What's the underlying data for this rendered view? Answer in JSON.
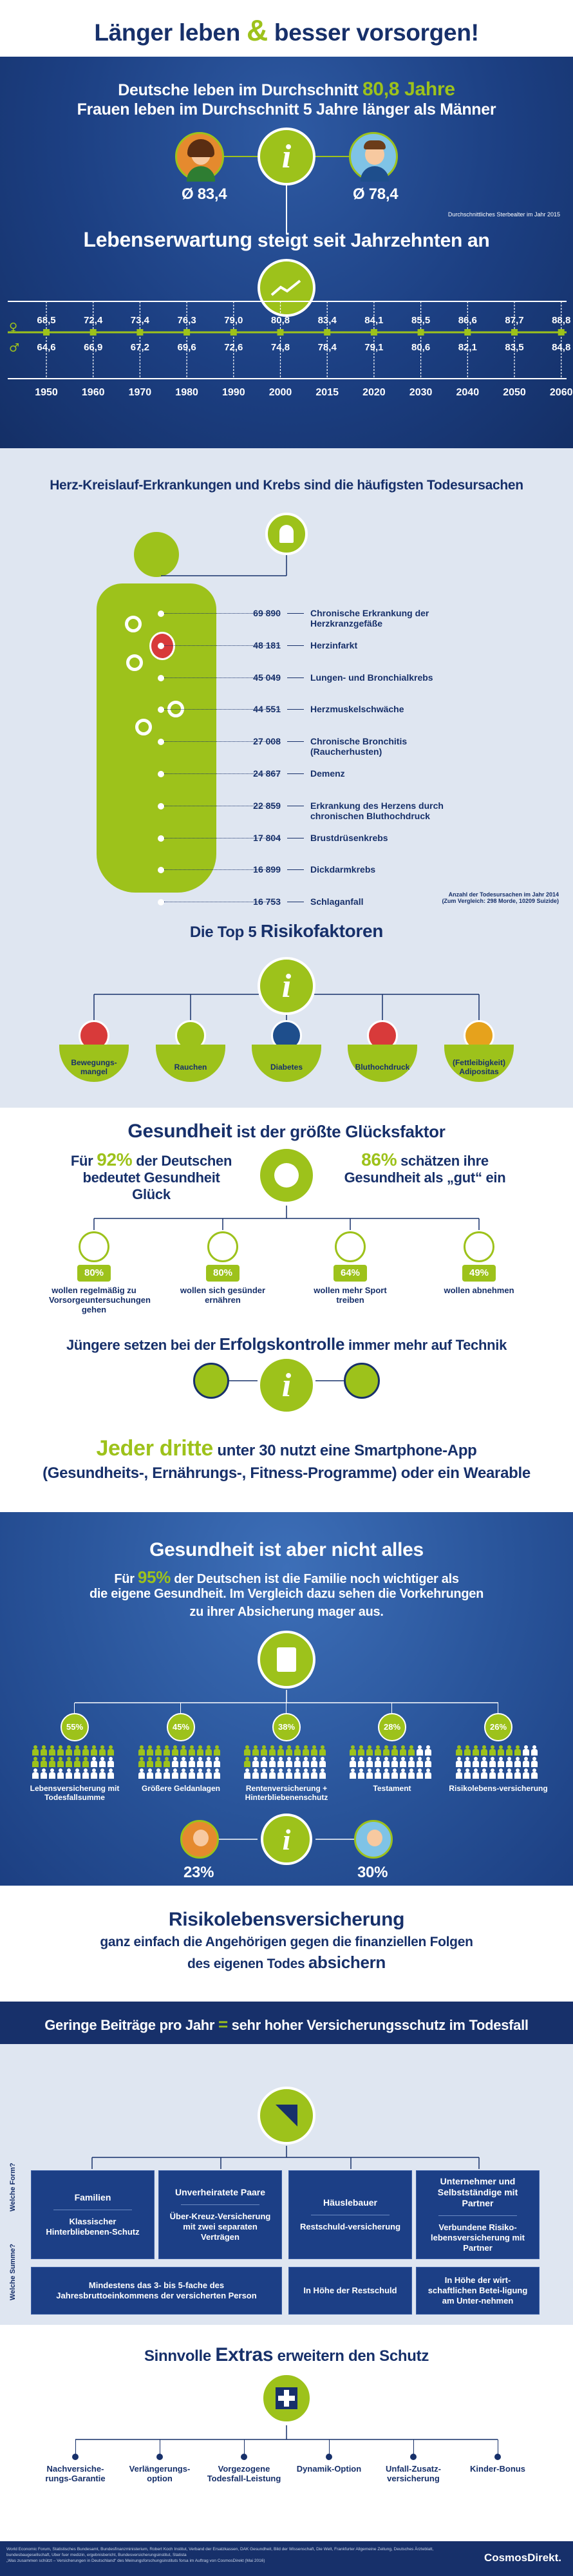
{
  "title": {
    "part1": "Länger leben",
    "amp": "&",
    "part2": "besser vorsorgen!"
  },
  "life": {
    "line1_pre": "Deutsche leben im Durchschnitt ",
    "line1_val": "80,8 Jahre",
    "line2": "Frauen leben im Durchschnitt 5 Jahre länger als Männer",
    "female": "Ø 83,4",
    "male": "Ø 78,4",
    "note": "Durchschnittliches Sterbealter im Jahr 2015"
  },
  "trend": {
    "title_pre": "Lebenserwartung",
    "title_post": " steigt seit Jahrzehnten an",
    "female_sym": "♀",
    "male_sym": "♂",
    "years": [
      "1950",
      "1960",
      "1970",
      "1980",
      "1990",
      "2000",
      "2015",
      "2020",
      "2030",
      "2040",
      "2050",
      "2060"
    ],
    "female": [
      "68,5",
      "72,4",
      "73,4",
      "76,3",
      "79,0",
      "80,8",
      "83,4",
      "84,1",
      "85,5",
      "86,6",
      "87,7",
      "88,8"
    ],
    "male": [
      "64,6",
      "66,9",
      "67,2",
      "69,6",
      "72,6",
      "74,8",
      "78,4",
      "79,1",
      "80,6",
      "82,1",
      "83,5",
      "84,8"
    ]
  },
  "death": {
    "title": "Herz-Kreislauf-Erkrankungen und Krebs sind die häufigsten Todesursachen",
    "rows": [
      {
        "value": "69 890",
        "label": "Chronische Erkrankung der Herzkranzgefäße"
      },
      {
        "value": "48 181",
        "label": "Herzinfarkt"
      },
      {
        "value": "45 049",
        "label": "Lungen- und Bronchialkrebs"
      },
      {
        "value": "44 551",
        "label": "Herzmuskelschwäche"
      },
      {
        "value": "27 008",
        "label": "Chronische Bronchitis (Raucherhusten)"
      },
      {
        "value": "24 867",
        "label": "Demenz"
      },
      {
        "value": "22 859",
        "label": "Erkrankung des Herzens durch chronischen Bluthochdruck"
      },
      {
        "value": "17 804",
        "label": "Brustdrüsenkrebs"
      },
      {
        "value": "16 899",
        "label": "Dickdarmkrebs"
      },
      {
        "value": "16 753",
        "label": "Schlaganfall"
      }
    ],
    "note1": "Anzahl der Todesursachen im Jahr 2014",
    "note2": "(Zum Vergleich: 298 Morde, 10209 Suizide)"
  },
  "risk": {
    "title_pre": "Die Top 5 ",
    "title_post": "Risikofaktoren",
    "items": [
      "Bewegungs-mangel",
      "Rauchen",
      "Diabetes",
      "Bluthochdruck",
      "(Fettleibigkeit) Adipositas"
    ]
  },
  "health": {
    "title_pre": "Gesundheit",
    "title_post": " ist der größte Glücksfaktor",
    "left_pre": "Für ",
    "left_val": "92%",
    "left_post": " der Deutschen bedeutet Gesundheit Glück",
    "right_val": "86%",
    "right_post": " schätzen ihre Gesundheit als „gut“ ein",
    "items": [
      {
        "pct": "80%",
        "label": "wollen regelmäßig zu Vorsorgeuntersuchungen gehen"
      },
      {
        "pct": "80%",
        "label": "wollen sich gesünder ernähren"
      },
      {
        "pct": "64%",
        "label": "wollen mehr Sport treiben"
      },
      {
        "pct": "49%",
        "label": "wollen abnehmen"
      }
    ]
  },
  "tech": {
    "title_pre": "Jüngere setzen bei der ",
    "title_val": "Erfolgskontrolle",
    "title_post": " immer mehr auf Technik",
    "big": "Jeder dritte",
    "line1_post": " unter 30 nutzt eine Smartphone-App",
    "line2": "(Gesundheits-, Ernährungs-, Fitness-Programme) oder ein Wearable"
  },
  "family": {
    "title": "Gesundheit ist aber nicht alles",
    "p1_pre": "Für ",
    "p1_val": "95%",
    "p1_post": " der Deutschen ist die Familie noch wichtiger als",
    "p2": "die eigene Gesundheit. Im Vergleich dazu sehen die Vorkehrungen",
    "p3": "zu ihrer Absicherung mager aus.",
    "items": [
      {
        "pct": "55%",
        "fraction": 0.55,
        "label": "Lebensversicherung mit Todesfallsumme"
      },
      {
        "pct": "45%",
        "fraction": 0.45,
        "label": "Größere Geldanlagen"
      },
      {
        "pct": "38%",
        "fraction": 0.38,
        "label": "Rentenversicherung + Hinterbliebenenschutz"
      },
      {
        "pct": "28%",
        "fraction": 0.28,
        "label": "Testament"
      },
      {
        "pct": "26%",
        "fraction": 0.26,
        "label": "Risikolebens-versicherung"
      }
    ],
    "female_pct": "23%",
    "male_pct": "30%"
  },
  "rlv": {
    "title": "Risikolebensversicherung",
    "line1": "ganz einfach die Angehörigen gegen die finanziellen Folgen",
    "line2_pre": "des eigenen Todes ",
    "line2_val": "absichern"
  },
  "beitrag": {
    "pre": "Geringe Beiträge pro Jahr ",
    "eq": "=",
    "post": " sehr hoher Versicherungsschutz im Todesfall"
  },
  "groups": {
    "side1": "Welche Form?",
    "side2": "Welche Summe?",
    "heads": [
      "Familien",
      "Unverheiratete Paare",
      "Häuslebauer",
      "Unternehmer und Selbstständige mit Partner"
    ],
    "forms": [
      "Klassischer Hinterbliebenen-Schutz",
      "Über-Kreuz-Versicherung mit zwei separaten Verträgen",
      "Restschuld-versicherung",
      "Verbundene Risiko-lebensversicherung mit Partner"
    ],
    "sums": [
      "Mindestens das 3- bis 5-fache des Jahresbruttoeinkommens der versicherten Person",
      "In Höhe der Restschuld",
      "In Höhe der wirt-schaftlichen Betei-ligung am Unter-nehmen"
    ]
  },
  "extras": {
    "title_pre": "Sinnvolle ",
    "title_val": "Extras",
    "title_post": " erweitern den Schutz",
    "items": [
      "Nachversiche-rungs-Garantie",
      "Verlängerungs-option",
      "Vorgezogene Todesfall-Leistung",
      "Dynamik-Option",
      "Unfall-Zusatz-versicherung",
      "Kinder-Bonus"
    ]
  },
  "footer": {
    "sources": "World Economic Forum, Statistisches Bundesamt, Bundesfinanzministerium, Robert Koch Institut, Verband der Ersatzkassen, DAK Gesundheit, Bild der Wissenschaft, Die Welt, Frankfurter Allgemeine Zeitung, Deutsches Ärzteblatt, bundesbaugesellschaft, Uber fuer medizin, ergebnisbericht, Bundesversicherungsinstitut, Statista",
    "sources2": "„Was zusammen schützt – Versicherungen in Deutschland“ des Meinungsforschungsinstituts forsa im Auftrag von CosmosDirekt (Mai 2016)",
    "brand": "CosmosDirekt."
  },
  "colors": {
    "navy": "#17306a",
    "lime": "#9dc21b",
    "blue": "#2a5aa6",
    "light": "#dfe6f1"
  }
}
